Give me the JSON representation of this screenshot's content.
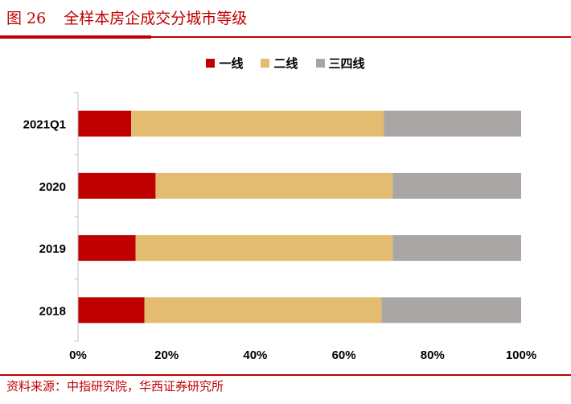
{
  "figure": {
    "number": "图 26",
    "title": "全样本房企成交分城市等级"
  },
  "source": "资料来源：中指研究院，华西证券研究所",
  "colors": {
    "accent": "#c00000",
    "tier1": "#c00000",
    "tier2": "#e3bb71",
    "tier3": "#aba6a6"
  },
  "chart_data": {
    "type": "bar",
    "orientation": "horizontal",
    "stacked": true,
    "categories": [
      "2021Q1",
      "2020",
      "2019",
      "2018"
    ],
    "series": [
      {
        "name": "一线",
        "values": [
          12,
          17.5,
          13,
          15
        ]
      },
      {
        "name": "二线",
        "values": [
          57,
          53.5,
          58,
          53.5
        ]
      },
      {
        "name": "三四线",
        "values": [
          31,
          29,
          29,
          31.5
        ]
      }
    ],
    "xlim": [
      0,
      100
    ],
    "xticks": [
      "0%",
      "20%",
      "40%",
      "60%",
      "80%",
      "100%"
    ],
    "legend_position": "top-center",
    "grid": false
  }
}
